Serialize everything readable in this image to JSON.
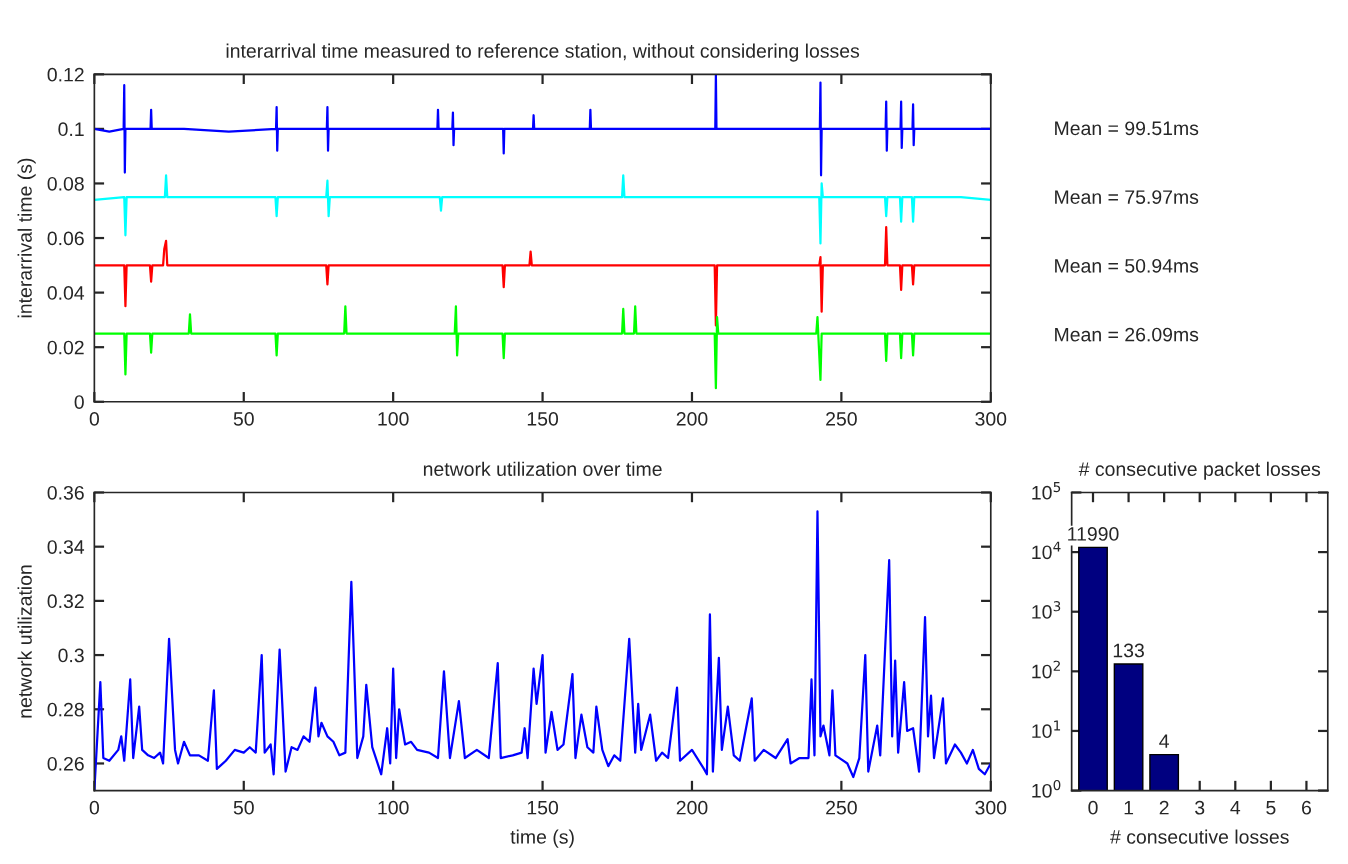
{
  "chart_data": [
    {
      "type": "line",
      "title": "interarrival time measured to reference station, without considering losses",
      "ylabel": "interarrival time (s)",
      "xlim": [
        0,
        300
      ],
      "xticks": [
        0,
        50,
        100,
        150,
        200,
        250,
        300
      ],
      "ylim": [
        0,
        0.12
      ],
      "yticks": [
        0,
        0.02,
        0.04,
        0.06,
        0.08,
        0.1,
        0.12
      ],
      "grid": false,
      "series": [
        {
          "color": "#0000ff",
          "x": [
            0,
            5,
            9.8,
            10,
            10.2,
            10.4,
            18.8,
            19,
            19.2,
            30,
            45,
            60.8,
            61,
            61.2,
            61.4,
            77.8,
            78,
            78.2,
            78.4,
            95,
            114.8,
            115,
            115.2,
            119.8,
            120,
            120.2,
            120.4,
            136.8,
            137,
            137.2,
            146.8,
            147,
            147.2,
            165.8,
            166,
            166.2,
            185,
            207.8,
            208,
            208.2,
            225,
            242.8,
            243,
            243.2,
            243.4,
            264.8,
            265,
            265.2,
            265.4,
            269.8,
            270,
            270.2,
            270.4,
            273.8,
            274,
            274.2,
            274.4,
            290,
            300
          ],
          "values": [
            0.1,
            0.099,
            0.1,
            0.116,
            0.084,
            0.1,
            0.1,
            0.107,
            0.1,
            0.1,
            0.099,
            0.1,
            0.108,
            0.092,
            0.1,
            0.1,
            0.108,
            0.092,
            0.1,
            0.1,
            0.1,
            0.107,
            0.1,
            0.1,
            0.106,
            0.094,
            0.1,
            0.1,
            0.091,
            0.1,
            0.1,
            0.105,
            0.1,
            0.1,
            0.107,
            0.1,
            0.1,
            0.1,
            0.12,
            0.1,
            0.1,
            0.1,
            0.117,
            0.083,
            0.1,
            0.1,
            0.11,
            0.092,
            0.1,
            0.1,
            0.11,
            0.093,
            0.1,
            0.1,
            0.109,
            0.094,
            0.1,
            0.1,
            0.1
          ]
        },
        {
          "color": "#00ffff",
          "x": [
            0,
            10,
            10.4,
            10.8,
            23.6,
            24,
            24.4,
            45,
            60.6,
            61,
            61.4,
            77.6,
            78,
            78.4,
            78.8,
            100,
            115.6,
            116,
            116.4,
            150,
            176.6,
            177,
            177.4,
            210,
            242.6,
            243,
            243.4,
            243.8,
            255,
            264.6,
            265,
            265.4,
            269.6,
            270,
            270.4,
            273.6,
            274,
            274.4,
            290,
            300
          ],
          "values": [
            0.074,
            0.075,
            0.061,
            0.075,
            0.075,
            0.083,
            0.075,
            0.075,
            0.075,
            0.068,
            0.075,
            0.075,
            0.081,
            0.068,
            0.075,
            0.075,
            0.075,
            0.07,
            0.075,
            0.075,
            0.075,
            0.083,
            0.075,
            0.075,
            0.075,
            0.058,
            0.08,
            0.075,
            0.075,
            0.075,
            0.068,
            0.075,
            0.075,
            0.066,
            0.075,
            0.075,
            0.066,
            0.075,
            0.075,
            0.074
          ]
        },
        {
          "color": "#ff0000",
          "x": [
            0,
            10,
            10.4,
            10.8,
            18.6,
            19,
            19.4,
            23,
            23.4,
            24,
            24.4,
            50,
            77.6,
            78,
            78.4,
            110,
            136.6,
            137,
            137.4,
            145.6,
            146,
            146.4,
            180,
            207.6,
            208,
            208.4,
            225,
            242.6,
            243,
            243.4,
            243.8,
            255,
            264.6,
            265,
            265.4,
            269.6,
            270,
            270.4,
            273.6,
            274,
            274.4,
            290,
            300
          ],
          "values": [
            0.05,
            0.05,
            0.035,
            0.05,
            0.05,
            0.044,
            0.05,
            0.05,
            0.056,
            0.059,
            0.05,
            0.05,
            0.05,
            0.043,
            0.05,
            0.05,
            0.05,
            0.042,
            0.05,
            0.05,
            0.055,
            0.05,
            0.05,
            0.05,
            0.028,
            0.05,
            0.05,
            0.05,
            0.053,
            0.033,
            0.05,
            0.05,
            0.05,
            0.064,
            0.05,
            0.05,
            0.041,
            0.05,
            0.05,
            0.043,
            0.05,
            0.05,
            0.05
          ]
        },
        {
          "color": "#00ff00",
          "x": [
            0,
            10,
            10.4,
            10.8,
            18.6,
            19,
            19.4,
            31.6,
            32,
            32.4,
            60.6,
            61,
            61.4,
            83.6,
            84,
            84.4,
            100,
            120.6,
            121,
            121.4,
            121.8,
            136.6,
            137,
            137.4,
            176.6,
            177,
            177.4,
            180.6,
            181,
            181.4,
            207.6,
            208,
            208.4,
            208.8,
            225,
            241.6,
            242,
            243,
            243.4,
            255,
            264.6,
            265,
            265.4,
            269.6,
            270,
            270.4,
            273.6,
            274,
            274.4,
            290,
            300
          ],
          "values": [
            0.025,
            0.025,
            0.01,
            0.025,
            0.025,
            0.018,
            0.025,
            0.025,
            0.032,
            0.025,
            0.025,
            0.017,
            0.025,
            0.025,
            0.035,
            0.025,
            0.025,
            0.025,
            0.035,
            0.017,
            0.025,
            0.025,
            0.016,
            0.025,
            0.025,
            0.034,
            0.025,
            0.025,
            0.035,
            0.025,
            0.025,
            0.005,
            0.031,
            0.025,
            0.025,
            0.025,
            0.031,
            0.008,
            0.025,
            0.025,
            0.025,
            0.015,
            0.025,
            0.025,
            0.016,
            0.025,
            0.025,
            0.017,
            0.025,
            0.025,
            0.025
          ]
        }
      ],
      "annotations": [
        "Mean = 99.51ms",
        "Mean = 75.97ms",
        "Mean = 50.94ms",
        "Mean = 26.09ms"
      ]
    },
    {
      "type": "line",
      "title": "network utilization over time",
      "xlabel": "time (s)",
      "ylabel": "network utilization",
      "xlim": [
        0,
        300
      ],
      "xticks": [
        0,
        50,
        100,
        150,
        200,
        250,
        300
      ],
      "ylim": [
        0.25,
        0.36
      ],
      "yticks": [
        0.26,
        0.28,
        0.3,
        0.32,
        0.34,
        0.36
      ],
      "grid": false,
      "series": [
        {
          "color": "#0000ff",
          "x": [
            0,
            2,
            3,
            5,
            8,
            9,
            10,
            12,
            13,
            15,
            16,
            18,
            20,
            22,
            23,
            25,
            27,
            28,
            30,
            32,
            35,
            38,
            40,
            41,
            44,
            47,
            50,
            52,
            54,
            56,
            57,
            59,
            60,
            62,
            64,
            66,
            68,
            70,
            72,
            74,
            75,
            76,
            78,
            80,
            82,
            84,
            86,
            88,
            90,
            91,
            93,
            96,
            98,
            99,
            100,
            101,
            102,
            104,
            106,
            108,
            112,
            115,
            117,
            119,
            122,
            124,
            128,
            132,
            135,
            136,
            140,
            143,
            144,
            145,
            147,
            148,
            150,
            151,
            153,
            155,
            157,
            160,
            161,
            163,
            165,
            167,
            168,
            170,
            172,
            174,
            176,
            179,
            181,
            182,
            183,
            186,
            188,
            190,
            192,
            195,
            196,
            200,
            204,
            205,
            206,
            207,
            209,
            210,
            212,
            214,
            216,
            220,
            221,
            224,
            228,
            232,
            233,
            236,
            239,
            240,
            241,
            242,
            243,
            244,
            246,
            247,
            248,
            252,
            254,
            256,
            258,
            259,
            262,
            263,
            266,
            267,
            268,
            269,
            271,
            272,
            274,
            276,
            278,
            279,
            280,
            281,
            284,
            285,
            288,
            290,
            292,
            294,
            296,
            298,
            300
          ],
          "values": [
            0.25,
            0.29,
            0.262,
            0.261,
            0.265,
            0.27,
            0.261,
            0.291,
            0.262,
            0.281,
            0.265,
            0.263,
            0.262,
            0.264,
            0.26,
            0.306,
            0.265,
            0.26,
            0.268,
            0.263,
            0.263,
            0.261,
            0.287,
            0.258,
            0.261,
            0.265,
            0.264,
            0.266,
            0.264,
            0.3,
            0.264,
            0.267,
            0.256,
            0.302,
            0.257,
            0.266,
            0.265,
            0.27,
            0.268,
            0.288,
            0.27,
            0.275,
            0.27,
            0.268,
            0.263,
            0.264,
            0.327,
            0.262,
            0.27,
            0.289,
            0.266,
            0.256,
            0.273,
            0.26,
            0.295,
            0.262,
            0.28,
            0.267,
            0.268,
            0.265,
            0.264,
            0.262,
            0.294,
            0.262,
            0.283,
            0.262,
            0.265,
            0.262,
            0.297,
            0.262,
            0.263,
            0.264,
            0.273,
            0.262,
            0.295,
            0.282,
            0.3,
            0.264,
            0.279,
            0.265,
            0.267,
            0.293,
            0.262,
            0.278,
            0.266,
            0.264,
            0.281,
            0.265,
            0.259,
            0.263,
            0.261,
            0.306,
            0.264,
            0.282,
            0.265,
            0.278,
            0.261,
            0.264,
            0.262,
            0.288,
            0.261,
            0.265,
            0.258,
            0.256,
            0.315,
            0.257,
            0.299,
            0.265,
            0.281,
            0.263,
            0.261,
            0.284,
            0.261,
            0.265,
            0.262,
            0.269,
            0.26,
            0.262,
            0.262,
            0.291,
            0.263,
            0.353,
            0.27,
            0.274,
            0.263,
            0.287,
            0.263,
            0.26,
            0.255,
            0.262,
            0.3,
            0.257,
            0.274,
            0.263,
            0.335,
            0.27,
            0.298,
            0.264,
            0.29,
            0.272,
            0.273,
            0.257,
            0.314,
            0.27,
            0.285,
            0.262,
            0.284,
            0.26,
            0.267,
            0.264,
            0.26,
            0.265,
            0.258,
            0.256,
            0.26
          ]
        }
      ]
    },
    {
      "type": "bar",
      "title": "# consecutive packet losses",
      "xlabel": "# consecutive losses",
      "categories": [
        "0",
        "1",
        "2",
        "3",
        "4",
        "5",
        "6"
      ],
      "values": [
        11990,
        133,
        4,
        null,
        null,
        null,
        null
      ],
      "color": "#000080",
      "log": true,
      "ylim": [
        1,
        100000
      ],
      "yticks": [
        {
          "value": 1,
          "label": "10$^{0}$"
        },
        {
          "value": 10,
          "label": "10$^{1}$"
        },
        {
          "value": 100,
          "label": "10$^{2}$"
        },
        {
          "value": 1000,
          "label": "10$^{3}$"
        },
        {
          "value": 10000,
          "label": "10$^{4}$"
        },
        {
          "value": 100000,
          "label": "10$^{5}$"
        }
      ],
      "data_labels": true,
      "grid": false
    }
  ]
}
